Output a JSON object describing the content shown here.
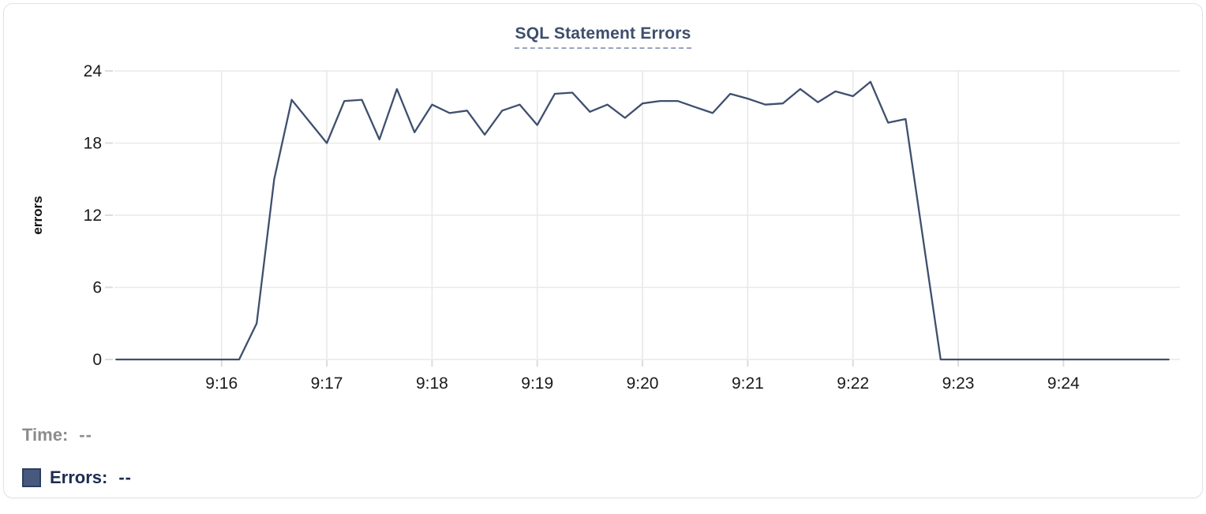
{
  "chart_data": {
    "type": "line",
    "title": "SQL Statement Errors",
    "ylabel": "errors",
    "xlabel": "",
    "ylim": [
      0,
      24
    ],
    "y_ticks": [
      0,
      6,
      12,
      18,
      24
    ],
    "x_ticks": [
      "9:16",
      "9:17",
      "9:18",
      "9:19",
      "9:20",
      "9:21",
      "9:22",
      "9:23",
      "9:24"
    ],
    "grid": true,
    "legend_position": "bottom-left",
    "series_name": "Errors",
    "x": [
      "9:15:00",
      "9:15:10",
      "9:15:20",
      "9:15:30",
      "9:15:40",
      "9:15:50",
      "9:16:00",
      "9:16:10",
      "9:16:20",
      "9:16:30",
      "9:16:40",
      "9:16:50",
      "9:17:00",
      "9:17:10",
      "9:17:20",
      "9:17:30",
      "9:17:40",
      "9:17:50",
      "9:18:00",
      "9:18:10",
      "9:18:20",
      "9:18:30",
      "9:18:40",
      "9:18:50",
      "9:19:00",
      "9:19:10",
      "9:19:20",
      "9:19:30",
      "9:19:40",
      "9:19:50",
      "9:20:00",
      "9:20:10",
      "9:20:20",
      "9:20:30",
      "9:20:40",
      "9:20:50",
      "9:21:00",
      "9:21:10",
      "9:21:20",
      "9:21:30",
      "9:21:40",
      "9:21:50",
      "9:22:00",
      "9:22:10",
      "9:22:20",
      "9:22:30",
      "9:22:40",
      "9:22:50",
      "9:23:00",
      "9:23:10",
      "9:23:20",
      "9:23:30",
      "9:23:40",
      "9:23:50",
      "9:24:00",
      "9:24:10",
      "9:24:20",
      "9:24:30",
      "9:24:40",
      "9:24:50",
      "9:25:00"
    ],
    "y": [
      0,
      0,
      0,
      0,
      0,
      0,
      0,
      0,
      3,
      15,
      21.6,
      19.8,
      18,
      21.5,
      21.6,
      18.3,
      22.5,
      18.9,
      21.2,
      20.5,
      20.7,
      18.7,
      20.7,
      21.2,
      19.5,
      22.1,
      22.2,
      20.6,
      21.2,
      20.1,
      21.3,
      21.5,
      21.5,
      21,
      20.5,
      22.1,
      21.7,
      21.2,
      21.3,
      22.5,
      21.4,
      22.3,
      21.9,
      23.1,
      19.7,
      20,
      10,
      0,
      0,
      0,
      0,
      0,
      0,
      0,
      0,
      0,
      0,
      0,
      0,
      0,
      0
    ]
  },
  "readout": {
    "time_label": "Time:",
    "time_value": "--",
    "errors_label": "Errors:",
    "errors_value": "--"
  },
  "colors": {
    "line": "#3f4f6e",
    "title_text": "#3e4e6b",
    "title_underline": "#98a4be",
    "grid": "#e9e9e9",
    "tick_mark": "#dcdcdc",
    "axis_text": "#1a1a1a",
    "readout_time_text": "#8c8c8c",
    "readout_errors_text": "#1d2d52",
    "swatch_fill": "#47597c",
    "swatch_border": "#2c3e63"
  }
}
